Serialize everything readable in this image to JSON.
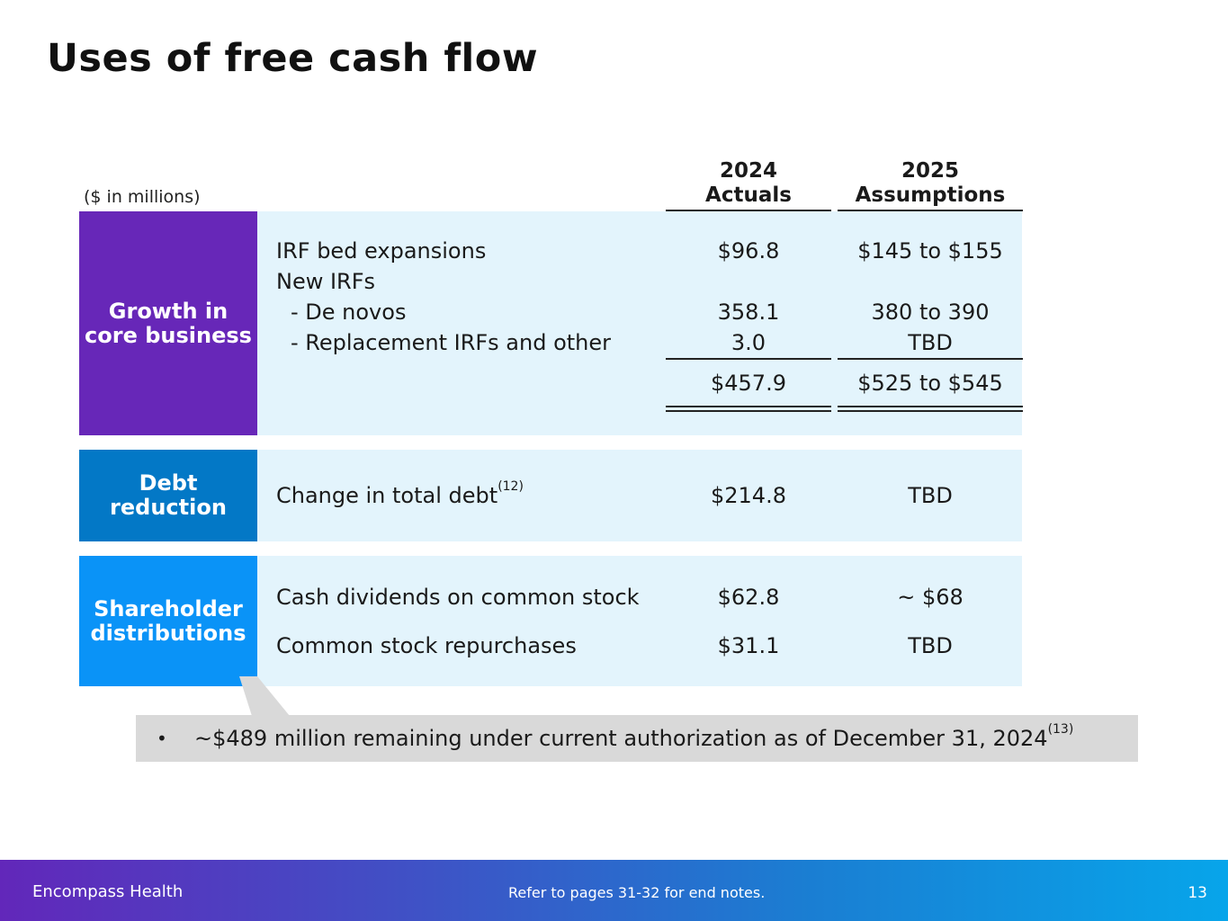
{
  "title": "Uses of free cash flow",
  "units_note": "($ in millions)",
  "columns": [
    {
      "year": "2024",
      "label": "Actuals"
    },
    {
      "year": "2025",
      "label": "Assumptions"
    }
  ],
  "sections": {
    "growth": {
      "label_line1": "Growth in",
      "label_line2": "core business",
      "rows": [
        {
          "label": "IRF bed expansions",
          "actual": "$96.8",
          "assumption": "$145 to $155"
        },
        {
          "label": "New IRFs",
          "actual": "",
          "assumption": ""
        },
        {
          "label": "  - De novos",
          "actual": "358.1",
          "assumption": "380 to 390"
        },
        {
          "label": "  - Replacement IRFs and other",
          "actual": "3.0",
          "assumption": "TBD"
        }
      ],
      "total": {
        "actual": "$457.9",
        "assumption": "$525 to $545"
      }
    },
    "debt": {
      "label_line1": "Debt",
      "label_line2": "reduction",
      "row": {
        "label": "Change in total debt",
        "footnote": "(12)",
        "actual": "$214.8",
        "assumption": "TBD"
      }
    },
    "shareholder": {
      "label_line1": "Shareholder",
      "label_line2": "distributions",
      "rows": [
        {
          "label": "Cash dividends on common stock",
          "actual": "$62.8",
          "assumption": "~ $68"
        },
        {
          "label": "Common stock repurchases",
          "actual": "$31.1",
          "assumption": "TBD"
        }
      ]
    }
  },
  "callout": {
    "bullet": "•",
    "text": "~$489 million remaining under current authorization as of December 31, 2024",
    "footnote": "(13)"
  },
  "footer": {
    "company": "Encompass Health",
    "note": "Refer to pages 31-32 for end notes.",
    "page_number": "13"
  },
  "colors": {
    "growth": "#6727b8",
    "debt": "#0378c6",
    "shareholder": "#0a93f7",
    "band": "#e3f4fc",
    "callout": "#d9d9d9"
  }
}
